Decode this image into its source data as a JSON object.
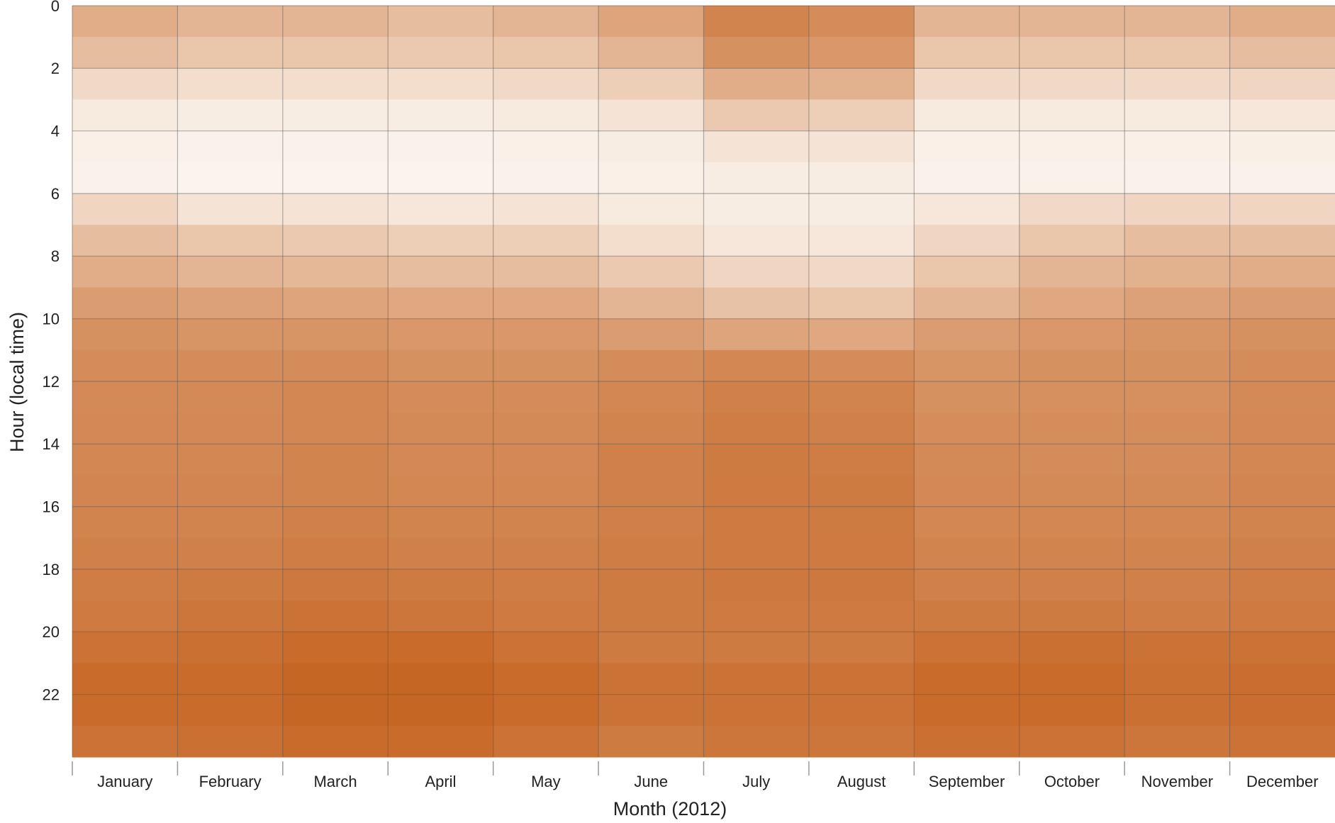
{
  "chart_data": {
    "type": "heatmap",
    "xlabel": "Month (2012)",
    "ylabel": "Hour (local time)",
    "categories": [
      "January",
      "February",
      "March",
      "April",
      "May",
      "June",
      "July",
      "August",
      "September",
      "October",
      "November",
      "December"
    ],
    "ylim": [
      0,
      24
    ],
    "yticks": [
      0,
      2,
      4,
      6,
      8,
      10,
      12,
      14,
      16,
      18,
      20,
      22
    ],
    "y_reversed": true,
    "grid": true,
    "zlim": [
      0,
      100
    ],
    "colors": [
      "#fcf7f1",
      "#bf5208"
    ],
    "values": [
      [
        45,
        40,
        40,
        35,
        40,
        50,
        70,
        65,
        40,
        40,
        40,
        45
      ],
      [
        35,
        30,
        30,
        28,
        30,
        40,
        62,
        58,
        30,
        30,
        30,
        35
      ],
      [
        18,
        15,
        15,
        15,
        18,
        25,
        45,
        42,
        18,
        18,
        18,
        20
      ],
      [
        8,
        6,
        6,
        6,
        8,
        12,
        28,
        25,
        8,
        8,
        8,
        10
      ],
      [
        4,
        3,
        3,
        3,
        4,
        6,
        12,
        12,
        4,
        4,
        4,
        5
      ],
      [
        3,
        2,
        2,
        2,
        3,
        4,
        6,
        6,
        3,
        3,
        3,
        3
      ],
      [
        20,
        12,
        12,
        10,
        12,
        8,
        6,
        6,
        10,
        18,
        20,
        20
      ],
      [
        35,
        30,
        28,
        25,
        25,
        15,
        10,
        10,
        20,
        30,
        35,
        35
      ],
      [
        45,
        40,
        38,
        35,
        35,
        28,
        20,
        18,
        30,
        40,
        42,
        45
      ],
      [
        55,
        52,
        50,
        48,
        48,
        40,
        32,
        30,
        40,
        48,
        52,
        55
      ],
      [
        62,
        60,
        60,
        58,
        58,
        55,
        50,
        48,
        55,
        58,
        60,
        62
      ],
      [
        65,
        65,
        65,
        62,
        62,
        65,
        68,
        65,
        60,
        62,
        62,
        65
      ],
      [
        66,
        66,
        68,
        65,
        65,
        68,
        72,
        70,
        62,
        63,
        63,
        66
      ],
      [
        67,
        67,
        68,
        66,
        66,
        70,
        74,
        72,
        64,
        64,
        64,
        67
      ],
      [
        68,
        68,
        70,
        67,
        67,
        72,
        75,
        74,
        66,
        65,
        65,
        68
      ],
      [
        69,
        69,
        70,
        68,
        68,
        72,
        76,
        75,
        67,
        66,
        66,
        69
      ],
      [
        70,
        70,
        72,
        70,
        70,
        73,
        76,
        75,
        68,
        68,
        68,
        70
      ],
      [
        72,
        72,
        74,
        72,
        72,
        74,
        76,
        76,
        70,
        70,
        70,
        72
      ],
      [
        74,
        75,
        77,
        75,
        74,
        75,
        77,
        77,
        72,
        72,
        72,
        74
      ],
      [
        76,
        78,
        80,
        78,
        76,
        75,
        76,
        76,
        75,
        75,
        74,
        76
      ],
      [
        80,
        82,
        85,
        85,
        80,
        75,
        75,
        75,
        80,
        82,
        80,
        80
      ],
      [
        85,
        85,
        88,
        88,
        85,
        80,
        80,
        80,
        85,
        85,
        82,
        83
      ],
      [
        85,
        85,
        88,
        88,
        85,
        80,
        80,
        80,
        85,
        85,
        82,
        83
      ],
      [
        80,
        82,
        85,
        85,
        80,
        75,
        78,
        78,
        82,
        80,
        78,
        80
      ]
    ]
  }
}
